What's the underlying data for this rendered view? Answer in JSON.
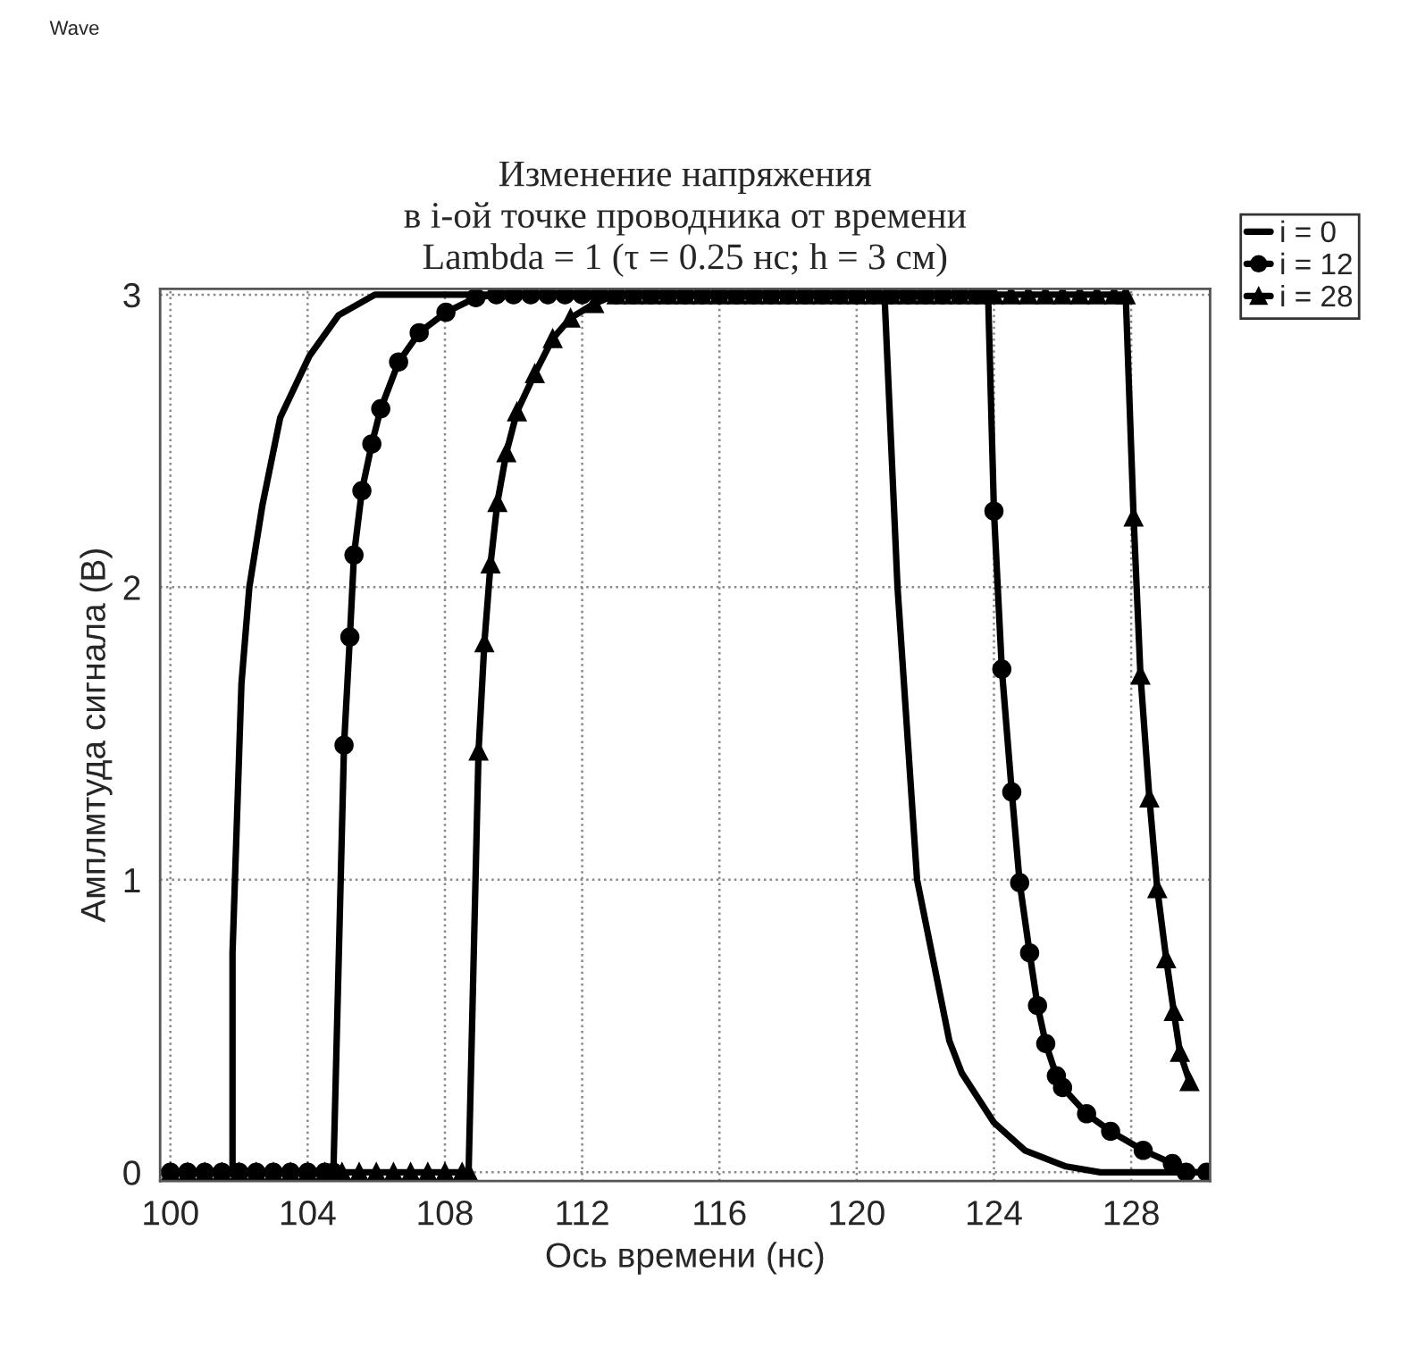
{
  "chart_data": {
    "type": "line",
    "title": "Изменение напряжения\nв i-ой точке проводника от времени\nLambda = 1 (τ = 0.25 нс; h = 3 см)",
    "xlabel": "Ось времени (нс)",
    "ylabel": "Амплмтуда сигнала (В)",
    "annotations": [
      "Wave"
    ],
    "xlim": [
      99.7,
      130.3
    ],
    "ylim": [
      -0.03,
      3.02
    ],
    "xticks": [
      100,
      104,
      108,
      112,
      116,
      120,
      124,
      128
    ],
    "yticks": [
      0,
      1,
      2,
      3
    ],
    "grid": true,
    "legend": "top right",
    "line_style": "solid",
    "series": [
      {
        "name": "i = 0",
        "color": "#000000",
        "marker": "none",
        "x": [
          99.7,
          101.81,
          101.81,
          102.07,
          102.3,
          102.68,
          103.2,
          104.05,
          104.9,
          105.96,
          120.81,
          121.19,
          121.76,
          122.7,
          123.06,
          124.0,
          124.9,
          126.1,
          127.1,
          130.3
        ],
        "values": [
          0,
          0,
          0.75,
          1.67,
          2.0,
          2.28,
          2.58,
          2.79,
          2.93,
          3.0,
          3.0,
          2.0,
          1.0,
          0.45,
          0.34,
          0.17,
          0.075,
          0.02,
          0,
          0
        ]
      },
      {
        "name": "i = 12",
        "color": "#000000",
        "marker": "circle",
        "x": [
          100,
          100.5,
          101,
          101.5,
          102,
          102.5,
          103,
          103.5,
          104,
          104.5,
          104.75,
          105.06,
          105.23,
          105.35,
          105.58,
          105.87,
          106.13,
          106.65,
          107.25,
          108.03,
          108.9,
          109.5,
          110,
          110.5,
          111,
          111.5,
          112,
          112.5,
          113,
          113.5,
          114,
          114.5,
          115,
          115.5,
          116,
          116.5,
          117,
          117.5,
          118,
          118.5,
          119,
          119.5,
          120,
          120.5,
          121,
          121.5,
          122,
          122.5,
          123,
          123.5,
          123.83,
          124.0,
          124.23,
          124.52,
          124.75,
          125.04,
          125.27,
          125.51,
          125.82,
          126.0,
          126.7,
          127.4,
          128.35,
          129.2,
          129.6,
          130.2
        ],
        "values": [
          0,
          0,
          0,
          0,
          0,
          0,
          0,
          0,
          0,
          0,
          0,
          1.46,
          1.83,
          2.11,
          2.33,
          2.49,
          2.61,
          2.77,
          2.87,
          2.94,
          2.99,
          3,
          3,
          3,
          3,
          3,
          3,
          3,
          3,
          3,
          3,
          3,
          3,
          3,
          3,
          3,
          3,
          3,
          3,
          3,
          3,
          3,
          3,
          3,
          3,
          3,
          3,
          3,
          3,
          3,
          3,
          2.26,
          1.72,
          1.3,
          0.99,
          0.75,
          0.57,
          0.44,
          0.33,
          0.29,
          0.2,
          0.14,
          0.075,
          0.03,
          0,
          0
        ]
      },
      {
        "name": "i = 28",
        "color": "#000000",
        "marker": "triangle",
        "x": [
          100,
          100.5,
          101,
          101.5,
          102,
          102.5,
          103,
          103.5,
          104,
          104.5,
          105,
          105.5,
          106,
          106.5,
          107,
          107.5,
          108,
          108.5,
          108.69,
          108.98,
          109.15,
          109.33,
          109.53,
          109.79,
          110.1,
          110.62,
          111.14,
          111.66,
          112.35,
          113,
          113.5,
          114,
          114.5,
          115,
          115.5,
          116,
          116.5,
          117,
          117.5,
          118,
          118.5,
          119,
          119.5,
          120,
          120.5,
          121,
          121.5,
          122,
          122.5,
          123,
          123.5,
          124,
          124.5,
          125,
          125.5,
          126,
          126.5,
          127,
          127.5,
          127.84,
          128.07,
          128.27,
          128.53,
          128.76,
          129.02,
          129.24,
          129.42,
          129.7
        ],
        "values": [
          0,
          0,
          0,
          0,
          0,
          0,
          0,
          0,
          0,
          0,
          0,
          0,
          0,
          0,
          0,
          0,
          0,
          0,
          0,
          1.44,
          1.81,
          2.08,
          2.29,
          2.46,
          2.6,
          2.73,
          2.85,
          2.92,
          2.97,
          3,
          3,
          3,
          3,
          3,
          3,
          3,
          3,
          3,
          3,
          3,
          3,
          3,
          3,
          3,
          3,
          3,
          3,
          3,
          3,
          3,
          3,
          3,
          3,
          3,
          3,
          3,
          3,
          3,
          3,
          3,
          2.24,
          1.7,
          1.28,
          0.97,
          0.73,
          0.55,
          0.41,
          0.31
        ]
      }
    ]
  }
}
